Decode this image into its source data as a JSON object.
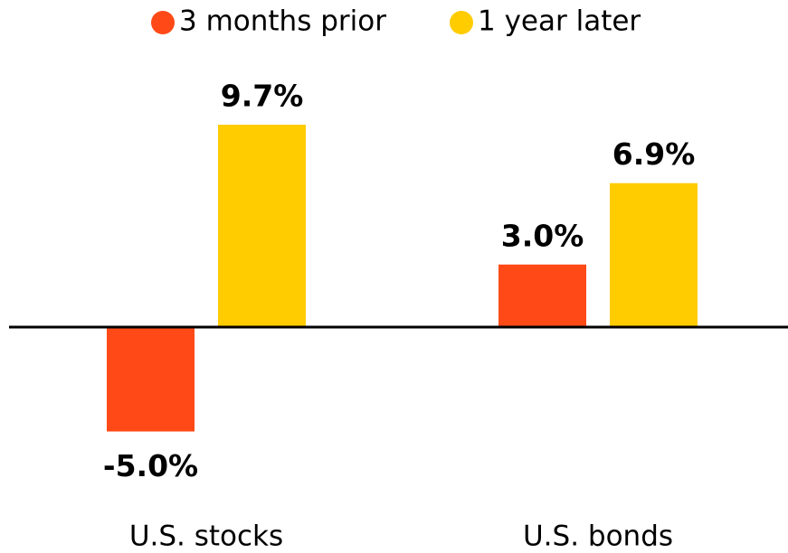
{
  "chart_data": {
    "type": "bar",
    "categories": [
      "U.S. stocks",
      "U.S. bonds"
    ],
    "series": [
      {
        "name": "3 months prior",
        "color": "#ff4a17",
        "values": [
          -5.0,
          3.0
        ],
        "value_labels": [
          "-5.0%",
          "3.0%"
        ]
      },
      {
        "name": "1 year later",
        "color": "#ffcc00",
        "values": [
          9.7,
          6.9
        ],
        "value_labels": [
          "9.7%",
          "6.9%"
        ]
      }
    ],
    "ylim": [
      -7,
      11
    ],
    "legend": "top"
  }
}
